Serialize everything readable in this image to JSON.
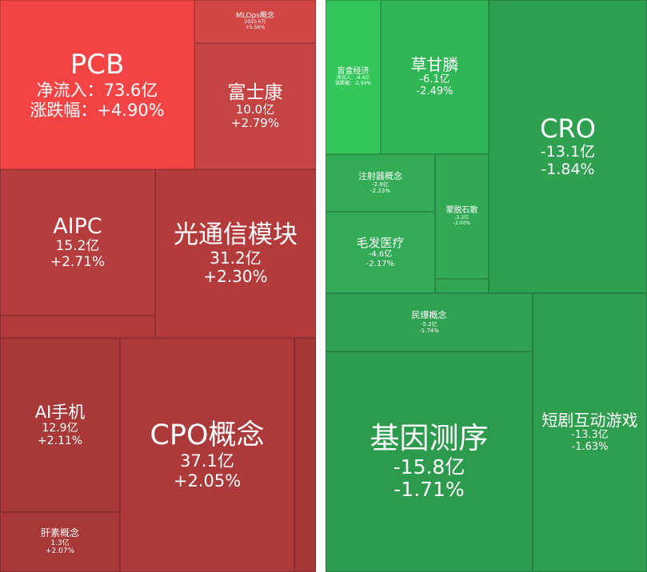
{
  "tiles": [
    {
      "name": "PCB",
      "lines": [
        "净流入：73.6亿",
        "涨跌幅：+4.90%"
      ]
    },
    {
      "name": "MLOps概念",
      "lines": [
        "2010.6万",
        "+5.56%"
      ]
    },
    {
      "name": "富士康",
      "lines": [
        "10.0亿",
        "+2.79%"
      ]
    },
    {
      "name": "AIPC",
      "lines": [
        "15.2亿",
        "+2.71%"
      ]
    },
    {
      "name": "光通信模块",
      "lines": [
        "31.2亿",
        "+2.30%"
      ]
    },
    {
      "name": "AI手机",
      "lines": [
        "12.9亿",
        "+2.11%"
      ]
    },
    {
      "name": "CPO概念",
      "lines": [
        "37.1亿",
        "+2.05%"
      ]
    },
    {
      "name": "肝素概念",
      "lines": [
        "1.3亿",
        "+2.07%"
      ]
    },
    {
      "name": "盲盒经济",
      "lines": [
        "净流入：-8.6亿",
        "涨跌幅：-2.94%"
      ]
    },
    {
      "name": "草甘膦",
      "lines": [
        "-6.1亿",
        "-2.49%"
      ]
    },
    {
      "name": "CRO",
      "lines": [
        "-13.1亿",
        "-1.84%"
      ]
    },
    {
      "name": "注射器概念",
      "lines": [
        "-2.6亿",
        "-2.23%"
      ]
    },
    {
      "name": "蒙脱石散",
      "lines": [
        "-2.2亿",
        "-2.00%"
      ]
    },
    {
      "name": "毛发医疗",
      "lines": [
        "-4.6亿",
        "-2.17%"
      ]
    },
    {
      "name": "民爆概念",
      "lines": [
        "-5.2亿",
        "-1.74%"
      ]
    },
    {
      "name": "基因测序",
      "lines": [
        "-15.8亿",
        "-1.71%"
      ]
    },
    {
      "name": "短剧互动游戏",
      "lines": [
        "-13.3亿",
        "-1.63%"
      ]
    }
  ]
}
